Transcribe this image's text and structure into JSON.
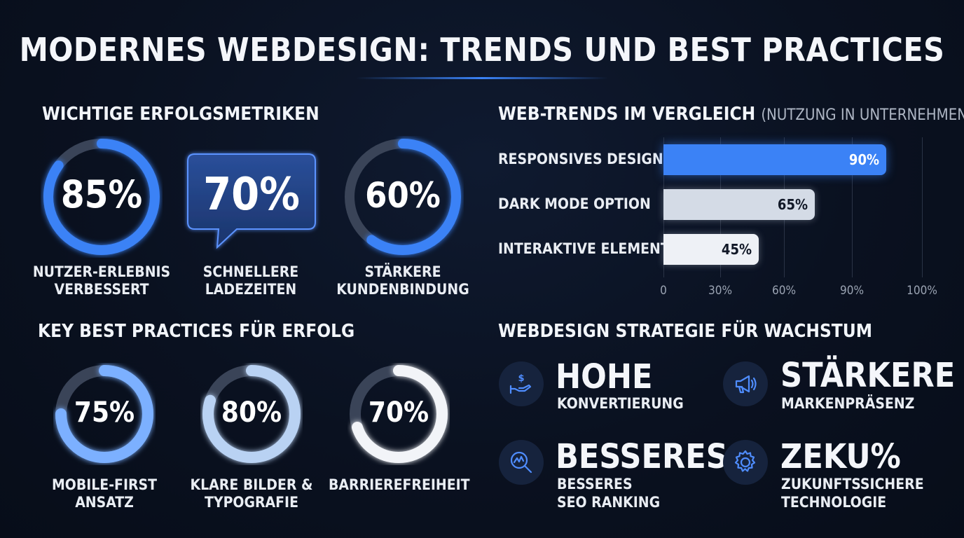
{
  "title": "MODERNES WEBDESIGN: TRENDS UND BEST PRACTICES",
  "metrics": {
    "heading": "WICHTIGE ERFOLGSMETRIKEN",
    "items": [
      {
        "value": "85%",
        "fraction": 0.85,
        "line1": "NUTZER-ERLEBNIS",
        "line2": "VERBESSERT"
      },
      {
        "value": "70%",
        "line1": "SCHNELLERE",
        "line2": "LADEZEITEN"
      },
      {
        "value": "60%",
        "fraction": 0.6,
        "line1": "STÄRKERE",
        "line2": "KUNDENBINDUNG"
      }
    ]
  },
  "trends": {
    "heading": "WEB-TRENDS IM VERGLEICH",
    "subheading": "(NUTZUNG IN UNTERNEHMEN)"
  },
  "chart_data": {
    "type": "bar",
    "orientation": "horizontal",
    "categories": [
      "RESPONSIVES DESIGN",
      "DARK MODE OPTION",
      "INTERAKTIVE ELEMENTE"
    ],
    "values": [
      90,
      65,
      45
    ],
    "value_labels": [
      "90%",
      "65%",
      "45%"
    ],
    "x_ticks": [
      "0",
      "30%",
      "60%",
      "90%",
      "100%"
    ],
    "xlim": [
      0,
      100
    ],
    "colors": [
      "#3b82f6",
      "#d4dbe6",
      "#eef1f6"
    ],
    "grid": true
  },
  "practices": {
    "heading": "KEY BEST PRACTICES FÜR ERFOLG",
    "items": [
      {
        "value": "75%",
        "fraction": 0.75,
        "line1": "MOBILE-FIRST",
        "line2": "ANSATZ"
      },
      {
        "value": "80%",
        "fraction": 0.8,
        "line1": "KLARE BILDER &",
        "line2": "TYPOGRAFIE"
      },
      {
        "value": "70%",
        "fraction": 0.7,
        "line1": "BARRIEREFREIHEIT",
        "line2": ""
      }
    ]
  },
  "strategy": {
    "heading": "WEBDESIGN STRATEGIE FÜR WACHSTUM",
    "items": [
      {
        "icon": "dollar-hand-icon",
        "big": "HOHE",
        "line1": "KONVERTIERUNG",
        "line2": ""
      },
      {
        "icon": "megaphone-icon",
        "big": "STÄRKERE",
        "line1": "MARKENPRÄSENZ",
        "line2": ""
      },
      {
        "icon": "magnifier-chart-icon",
        "big": "BESSERES",
        "line1": "BESSERES",
        "line2": "SEO RANKING"
      },
      {
        "icon": "gear-icon",
        "big": "ZEKU%",
        "line1": "ZUKUNFTSSICHERE",
        "line2": "TECHNOLOGIE"
      }
    ]
  },
  "colors": {
    "accent": "#3b82f6",
    "background": "#0a1120",
    "track": "#3a4458"
  }
}
